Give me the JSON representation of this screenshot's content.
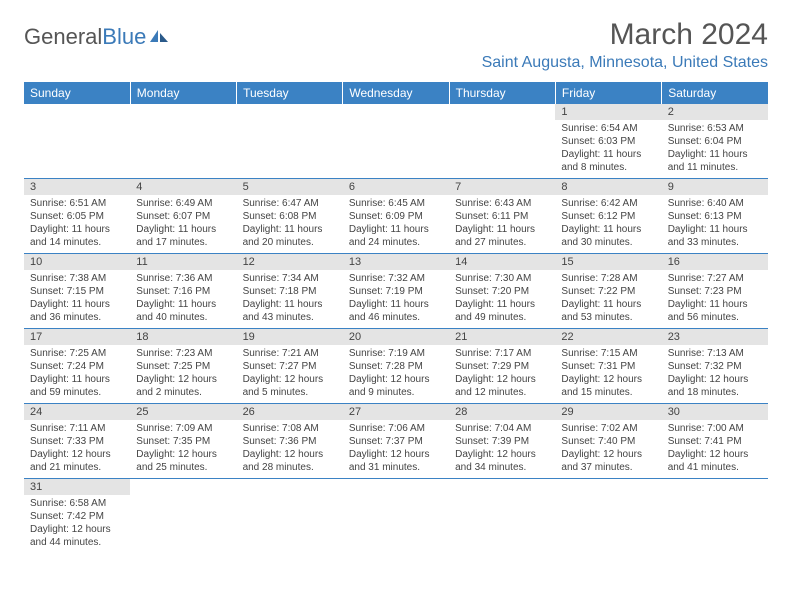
{
  "logo": {
    "text_general": "General",
    "text_blue": "Blue"
  },
  "title": "March 2024",
  "location": "Saint Augusta, Minnesota, United States",
  "day_headers": [
    "Sunday",
    "Monday",
    "Tuesday",
    "Wednesday",
    "Thursday",
    "Friday",
    "Saturday"
  ],
  "colors": {
    "header_bg": "#3b82c4",
    "header_text": "#ffffff",
    "daynum_bg": "#e4e4e4",
    "border": "#3b82c4",
    "logo_blue": "#3b7ab8",
    "text": "#444444"
  },
  "weeks": [
    [
      {
        "n": "",
        "lines": []
      },
      {
        "n": "",
        "lines": []
      },
      {
        "n": "",
        "lines": []
      },
      {
        "n": "",
        "lines": []
      },
      {
        "n": "",
        "lines": []
      },
      {
        "n": "1",
        "lines": [
          "Sunrise: 6:54 AM",
          "Sunset: 6:03 PM",
          "Daylight: 11 hours",
          "and 8 minutes."
        ]
      },
      {
        "n": "2",
        "lines": [
          "Sunrise: 6:53 AM",
          "Sunset: 6:04 PM",
          "Daylight: 11 hours",
          "and 11 minutes."
        ]
      }
    ],
    [
      {
        "n": "3",
        "lines": [
          "Sunrise: 6:51 AM",
          "Sunset: 6:05 PM",
          "Daylight: 11 hours",
          "and 14 minutes."
        ]
      },
      {
        "n": "4",
        "lines": [
          "Sunrise: 6:49 AM",
          "Sunset: 6:07 PM",
          "Daylight: 11 hours",
          "and 17 minutes."
        ]
      },
      {
        "n": "5",
        "lines": [
          "Sunrise: 6:47 AM",
          "Sunset: 6:08 PM",
          "Daylight: 11 hours",
          "and 20 minutes."
        ]
      },
      {
        "n": "6",
        "lines": [
          "Sunrise: 6:45 AM",
          "Sunset: 6:09 PM",
          "Daylight: 11 hours",
          "and 24 minutes."
        ]
      },
      {
        "n": "7",
        "lines": [
          "Sunrise: 6:43 AM",
          "Sunset: 6:11 PM",
          "Daylight: 11 hours",
          "and 27 minutes."
        ]
      },
      {
        "n": "8",
        "lines": [
          "Sunrise: 6:42 AM",
          "Sunset: 6:12 PM",
          "Daylight: 11 hours",
          "and 30 minutes."
        ]
      },
      {
        "n": "9",
        "lines": [
          "Sunrise: 6:40 AM",
          "Sunset: 6:13 PM",
          "Daylight: 11 hours",
          "and 33 minutes."
        ]
      }
    ],
    [
      {
        "n": "10",
        "lines": [
          "Sunrise: 7:38 AM",
          "Sunset: 7:15 PM",
          "Daylight: 11 hours",
          "and 36 minutes."
        ]
      },
      {
        "n": "11",
        "lines": [
          "Sunrise: 7:36 AM",
          "Sunset: 7:16 PM",
          "Daylight: 11 hours",
          "and 40 minutes."
        ]
      },
      {
        "n": "12",
        "lines": [
          "Sunrise: 7:34 AM",
          "Sunset: 7:18 PM",
          "Daylight: 11 hours",
          "and 43 minutes."
        ]
      },
      {
        "n": "13",
        "lines": [
          "Sunrise: 7:32 AM",
          "Sunset: 7:19 PM",
          "Daylight: 11 hours",
          "and 46 minutes."
        ]
      },
      {
        "n": "14",
        "lines": [
          "Sunrise: 7:30 AM",
          "Sunset: 7:20 PM",
          "Daylight: 11 hours",
          "and 49 minutes."
        ]
      },
      {
        "n": "15",
        "lines": [
          "Sunrise: 7:28 AM",
          "Sunset: 7:22 PM",
          "Daylight: 11 hours",
          "and 53 minutes."
        ]
      },
      {
        "n": "16",
        "lines": [
          "Sunrise: 7:27 AM",
          "Sunset: 7:23 PM",
          "Daylight: 11 hours",
          "and 56 minutes."
        ]
      }
    ],
    [
      {
        "n": "17",
        "lines": [
          "Sunrise: 7:25 AM",
          "Sunset: 7:24 PM",
          "Daylight: 11 hours",
          "and 59 minutes."
        ]
      },
      {
        "n": "18",
        "lines": [
          "Sunrise: 7:23 AM",
          "Sunset: 7:25 PM",
          "Daylight: 12 hours",
          "and 2 minutes."
        ]
      },
      {
        "n": "19",
        "lines": [
          "Sunrise: 7:21 AM",
          "Sunset: 7:27 PM",
          "Daylight: 12 hours",
          "and 5 minutes."
        ]
      },
      {
        "n": "20",
        "lines": [
          "Sunrise: 7:19 AM",
          "Sunset: 7:28 PM",
          "Daylight: 12 hours",
          "and 9 minutes."
        ]
      },
      {
        "n": "21",
        "lines": [
          "Sunrise: 7:17 AM",
          "Sunset: 7:29 PM",
          "Daylight: 12 hours",
          "and 12 minutes."
        ]
      },
      {
        "n": "22",
        "lines": [
          "Sunrise: 7:15 AM",
          "Sunset: 7:31 PM",
          "Daylight: 12 hours",
          "and 15 minutes."
        ]
      },
      {
        "n": "23",
        "lines": [
          "Sunrise: 7:13 AM",
          "Sunset: 7:32 PM",
          "Daylight: 12 hours",
          "and 18 minutes."
        ]
      }
    ],
    [
      {
        "n": "24",
        "lines": [
          "Sunrise: 7:11 AM",
          "Sunset: 7:33 PM",
          "Daylight: 12 hours",
          "and 21 minutes."
        ]
      },
      {
        "n": "25",
        "lines": [
          "Sunrise: 7:09 AM",
          "Sunset: 7:35 PM",
          "Daylight: 12 hours",
          "and 25 minutes."
        ]
      },
      {
        "n": "26",
        "lines": [
          "Sunrise: 7:08 AM",
          "Sunset: 7:36 PM",
          "Daylight: 12 hours",
          "and 28 minutes."
        ]
      },
      {
        "n": "27",
        "lines": [
          "Sunrise: 7:06 AM",
          "Sunset: 7:37 PM",
          "Daylight: 12 hours",
          "and 31 minutes."
        ]
      },
      {
        "n": "28",
        "lines": [
          "Sunrise: 7:04 AM",
          "Sunset: 7:39 PM",
          "Daylight: 12 hours",
          "and 34 minutes."
        ]
      },
      {
        "n": "29",
        "lines": [
          "Sunrise: 7:02 AM",
          "Sunset: 7:40 PM",
          "Daylight: 12 hours",
          "and 37 minutes."
        ]
      },
      {
        "n": "30",
        "lines": [
          "Sunrise: 7:00 AM",
          "Sunset: 7:41 PM",
          "Daylight: 12 hours",
          "and 41 minutes."
        ]
      }
    ],
    [
      {
        "n": "31",
        "lines": [
          "Sunrise: 6:58 AM",
          "Sunset: 7:42 PM",
          "Daylight: 12 hours",
          "and 44 minutes."
        ]
      },
      {
        "n": "",
        "lines": []
      },
      {
        "n": "",
        "lines": []
      },
      {
        "n": "",
        "lines": []
      },
      {
        "n": "",
        "lines": []
      },
      {
        "n": "",
        "lines": []
      },
      {
        "n": "",
        "lines": []
      }
    ]
  ]
}
